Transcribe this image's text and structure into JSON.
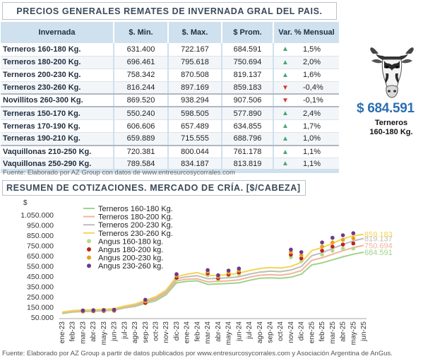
{
  "header": {
    "title": "PRECIOS GENERALES REMATES DE INVERNADA GRAL DEL PAIS."
  },
  "table": {
    "columns": [
      "Invernada",
      "$. Min.",
      "$. Max.",
      "$ Prom.",
      "Var. % Mensual"
    ],
    "rows": [
      {
        "category": "Terneros 160-180 Kg.",
        "min": "631.400",
        "max": "722.167",
        "prom": "684.591",
        "dir": "up",
        "var": "1,5%"
      },
      {
        "category": "Terneros 180-200 Kg.",
        "min": "696.461",
        "max": "795.618",
        "prom": "750.694",
        "dir": "up",
        "var": "2,0%"
      },
      {
        "category": "Terneros 200-230 Kg.",
        "min": "758.342",
        "max": "870.508",
        "prom": "819.137",
        "dir": "up",
        "var": "1,6%"
      },
      {
        "category": "Terneros 230-260 Kg.",
        "min": "816.244",
        "max": "897.169",
        "prom": "859.183",
        "dir": "down",
        "var": "-0,4%"
      },
      {
        "category": "Novillitos 260-300 Kg.",
        "min": "869.520",
        "max": "938.294",
        "prom": "907.506",
        "dir": "down",
        "var": "-0,1%"
      },
      {
        "category": "Terneras 150-170 Kg.",
        "min": "550.240",
        "max": "598.505",
        "prom": "577.890",
        "dir": "up",
        "var": "2,4%"
      },
      {
        "category": "Terneras 170-190 Kg.",
        "min": "606.606",
        "max": "657.489",
        "prom": "634.855",
        "dir": "up",
        "var": "1,7%"
      },
      {
        "category": "Terneras 190-210 Kg.",
        "min": "659.889",
        "max": "715.555",
        "prom": "688.796",
        "dir": "up",
        "var": "1,0%"
      },
      {
        "category": "Vaquillonas 210-250 Kg.",
        "min": "720.381",
        "max": "800.044",
        "prom": "761.178",
        "dir": "up",
        "var": "1,1%"
      },
      {
        "category": "Vaquillonas 250-290 Kg.",
        "min": "789.584",
        "max": "834.187",
        "prom": "813.819",
        "dir": "up",
        "var": "1,1%"
      }
    ]
  },
  "featured": {
    "price": "$ 684.591",
    "label_line1": "Terneros",
    "label_line2": "160-180 Kg.",
    "icon": "cow-head-icon"
  },
  "source_top": "Fuente: Elaborado por AZ Group con datos de www.entresurcosycorrales.com",
  "section2": {
    "title": "RESUMEN DE COTIZACIONES. MERCADO DE CRÍA. [$/CABEZA]"
  },
  "source_bottom": "Fuente: Elaborado por AZ Group a partir de datos publicados por www.entresurcosycorrales.com y Asociación Argentina de AnGus.",
  "colors": {
    "accent_blue": "#2c6fb2",
    "header_fill": "#cfe0ee",
    "up": "#4aa37a",
    "down": "#d33a2c"
  },
  "chart_data": {
    "type": "line",
    "ylabel": "$",
    "yticks": [
      "1.050.000",
      "950.000",
      "850.000",
      "750.000",
      "650.000",
      "550.000",
      "450.000",
      "350.000",
      "250.000",
      "150.000",
      "50.000"
    ],
    "ylim": [
      50000,
      1050000
    ],
    "x": [
      "ene-23",
      "feb-23",
      "mar-23",
      "abr-23",
      "may-23",
      "jun-23",
      "jul-23",
      "ago-23",
      "sep-23",
      "oct-23",
      "nov-23",
      "dic-23",
      "ene-24",
      "feb-24",
      "mar-24",
      "abr-24",
      "may-24",
      "jun-24",
      "jul-24",
      "ago-24",
      "sep-24",
      "oct-24",
      "nov-24",
      "dic-24",
      "ene-25",
      "feb-25",
      "mar-25",
      "abr-25",
      "may-25",
      "jun-25"
    ],
    "lines": [
      {
        "name": "Terneros 160-180 Kg.",
        "color": "#9fd38a",
        "end_label": "684.591",
        "values": [
          85000,
          100000,
          105000,
          108000,
          112000,
          118000,
          140000,
          155000,
          185000,
          210000,
          270000,
          385000,
          400000,
          405000,
          370000,
          375000,
          380000,
          385000,
          410000,
          430000,
          435000,
          430000,
          440000,
          470000,
          560000,
          580000,
          610000,
          640000,
          665000,
          684591
        ]
      },
      {
        "name": "Terneros 180-200 Kg.",
        "color": "#f2b49a",
        "end_label": "750.694",
        "values": [
          90000,
          105000,
          110000,
          113000,
          117000,
          123000,
          146000,
          162000,
          195000,
          225000,
          285000,
          405000,
          420000,
          425000,
          395000,
          400000,
          405000,
          415000,
          440000,
          460000,
          465000,
          460000,
          475000,
          505000,
          605000,
          630000,
          665000,
          700000,
          730000,
          750694
        ]
      },
      {
        "name": "Terneros 200-230 Kg.",
        "color": "#bdbdbd",
        "end_label": "819.137",
        "values": [
          95000,
          110000,
          115000,
          118000,
          122000,
          129000,
          153000,
          170000,
          205000,
          238000,
          300000,
          425000,
          445000,
          455000,
          425000,
          430000,
          435000,
          445000,
          470000,
          490000,
          500000,
          495000,
          510000,
          545000,
          650000,
          680000,
          720000,
          760000,
          795000,
          819137
        ]
      },
      {
        "name": "Terneros 230-260 Kg.",
        "color": "#f5d454",
        "end_label": "859.183",
        "values": [
          100000,
          115000,
          120000,
          123000,
          127000,
          134000,
          160000,
          178000,
          215000,
          250000,
          315000,
          445000,
          470000,
          485000,
          455000,
          460000,
          465000,
          480000,
          505000,
          525000,
          535000,
          530000,
          545000,
          585000,
          700000,
          730000,
          770000,
          815000,
          845000,
          859183
        ]
      }
    ],
    "points": [
      {
        "name": "Angus 160-180 kg.",
        "color": "#b8d98a",
        "data": [
          [
            "mar-23",
            105000
          ],
          [
            "abr-23",
            107000
          ],
          [
            "may-23",
            109000
          ],
          [
            "jun-23",
            112000
          ],
          [
            "sep-23",
            185000
          ],
          [
            "dic-23",
            420000
          ],
          [
            "mar-24",
            460000
          ],
          [
            "abr-24",
            410000
          ],
          [
            "may-24",
            450000
          ],
          [
            "jun-24",
            470000
          ],
          [
            "nov-24",
            635000
          ],
          [
            "dic-24",
            600000
          ],
          [
            "feb-25",
            660000
          ],
          [
            "mar-25",
            700000
          ],
          [
            "abr-25",
            720000
          ],
          [
            "may-25",
            720000
          ]
        ]
      },
      {
        "name": "Angus 180-200 kg.",
        "color": "#c0201e",
        "data": [
          [
            "mar-23",
            108000
          ],
          [
            "abr-23",
            110000
          ],
          [
            "may-23",
            112000
          ],
          [
            "jun-23",
            115000
          ],
          [
            "sep-23",
            190000
          ],
          [
            "dic-23",
            435000
          ],
          [
            "mar-24",
            478000
          ],
          [
            "abr-24",
            430000
          ],
          [
            "may-24",
            468000
          ],
          [
            "jun-24",
            488000
          ],
          [
            "nov-24",
            660000
          ],
          [
            "dic-24",
            625000
          ],
          [
            "feb-25",
            700000
          ],
          [
            "mar-25",
            740000
          ],
          [
            "abr-25",
            760000
          ],
          [
            "may-25",
            770000
          ]
        ]
      },
      {
        "name": "Angus 200-230 kg.",
        "color": "#e8a020",
        "data": [
          [
            "mar-23",
            112000
          ],
          [
            "abr-23",
            114000
          ],
          [
            "may-23",
            116000
          ],
          [
            "jun-23",
            119000
          ],
          [
            "sep-23",
            205000
          ],
          [
            "dic-23",
            455000
          ],
          [
            "mar-24",
            495000
          ],
          [
            "abr-24",
            445000
          ],
          [
            "may-24",
            485000
          ],
          [
            "jun-24",
            505000
          ],
          [
            "nov-24",
            685000
          ],
          [
            "dic-24",
            655000
          ],
          [
            "feb-25",
            740000
          ],
          [
            "mar-25",
            780000
          ],
          [
            "abr-25",
            805000
          ],
          [
            "may-25",
            820000
          ]
        ]
      },
      {
        "name": "Angus 230-260 kg.",
        "color": "#6a3a8a",
        "data": [
          [
            "mar-23",
            116000
          ],
          [
            "abr-23",
            118000
          ],
          [
            "may-23",
            120000
          ],
          [
            "jun-23",
            123000
          ],
          [
            "sep-23",
            220000
          ],
          [
            "dic-23",
            470000
          ],
          [
            "mar-24",
            510000
          ],
          [
            "abr-24",
            460000
          ],
          [
            "may-24",
            505000
          ],
          [
            "jun-24",
            525000
          ],
          [
            "nov-24",
            710000
          ],
          [
            "dic-24",
            685000
          ],
          [
            "feb-25",
            780000
          ],
          [
            "mar-25",
            825000
          ],
          [
            "abr-25",
            850000
          ],
          [
            "may-25",
            870000
          ]
        ]
      }
    ],
    "legend_position": "top-left",
    "grid": false
  }
}
